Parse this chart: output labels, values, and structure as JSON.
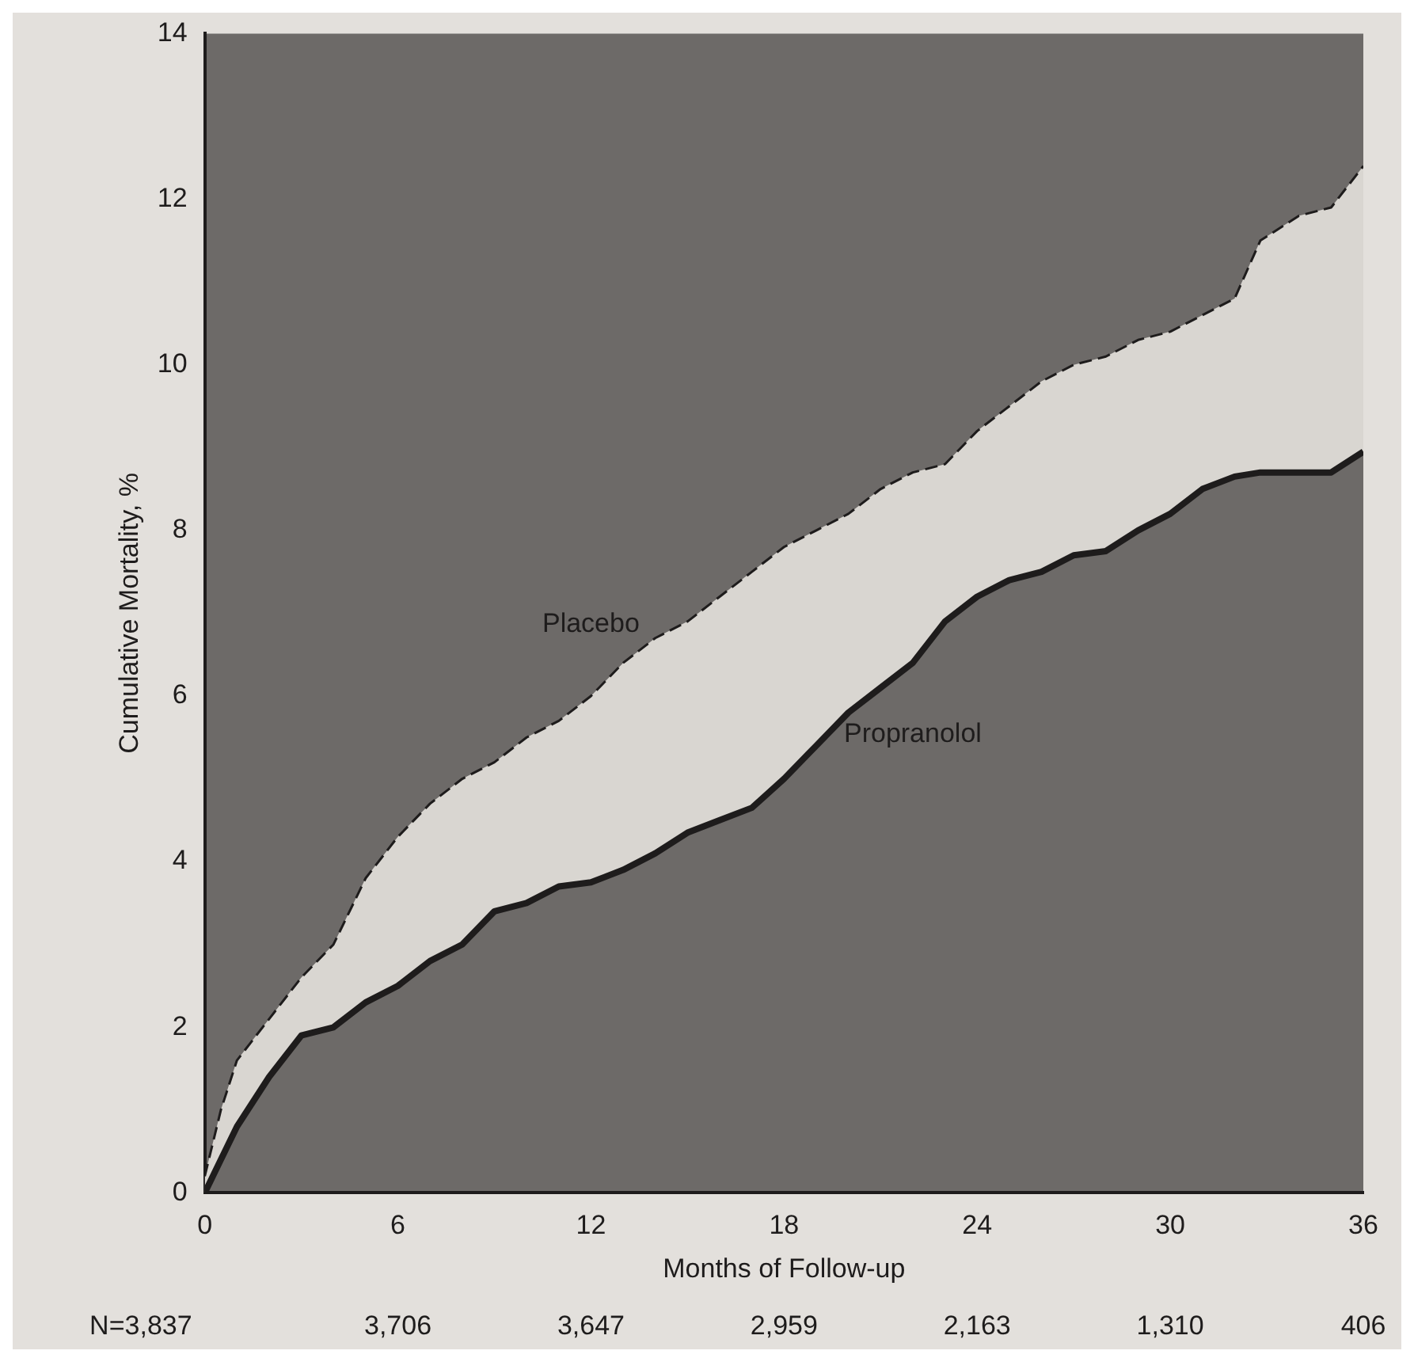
{
  "chart_data": {
    "type": "line",
    "xlabel": "Months of Follow-up",
    "ylabel": "Cumulative Mortality, %",
    "xlim": [
      0,
      36
    ],
    "xticks": [
      0,
      6,
      12,
      18,
      24,
      30,
      36
    ],
    "ylim": [
      0,
      14
    ],
    "yticks": [
      0,
      2,
      4,
      6,
      8,
      10,
      12,
      14
    ],
    "grid": false,
    "legend": false,
    "marker": "none",
    "annotations": [
      "N=3,837",
      "3,706",
      "3,647",
      "2,959",
      "2,163",
      "1,310",
      "406"
    ],
    "x": [
      0,
      0.5,
      1,
      2,
      3,
      4,
      5,
      6,
      7,
      8,
      9,
      10,
      11,
      12,
      13,
      14,
      15,
      16,
      17,
      18,
      19,
      20,
      21,
      22,
      23,
      24,
      25,
      26,
      27,
      28,
      29,
      30,
      31,
      32,
      32.8,
      34,
      35,
      36
    ],
    "series": [
      {
        "name": "Propranolol",
        "color": "#1e1c1c",
        "line_style": "solid",
        "values": [
          0,
          0.4,
          0.8,
          1.4,
          1.9,
          2.0,
          2.3,
          2.5,
          2.8,
          3.0,
          3.4,
          3.5,
          3.7,
          3.75,
          3.9,
          4.1,
          4.35,
          4.5,
          4.65,
          5.0,
          5.4,
          5.8,
          6.1,
          6.4,
          6.9,
          7.2,
          7.4,
          7.5,
          7.7,
          7.75,
          8.0,
          8.2,
          8.5,
          8.65,
          8.7,
          8.7,
          8.7,
          8.95
        ]
      },
      {
        "name": "Placebo",
        "color": "#1e1c1c",
        "line_style": "dashed",
        "values": [
          0.2,
          1.0,
          1.6,
          2.1,
          2.6,
          3.0,
          3.8,
          4.3,
          4.7,
          5.0,
          5.2,
          5.5,
          5.7,
          6.0,
          6.4,
          6.7,
          6.9,
          7.2,
          7.5,
          7.8,
          8.0,
          8.2,
          8.5,
          8.7,
          8.8,
          9.2,
          9.5,
          9.8,
          10.0,
          10.1,
          10.3,
          10.4,
          10.6,
          10.8,
          11.5,
          11.8,
          11.9,
          12.4
        ],
        "lower": [
          0,
          0.4,
          0.8,
          1.4,
          1.9,
          2.0,
          2.3,
          2.5,
          2.8,
          3.0,
          3.4,
          3.5,
          3.7,
          3.75,
          3.9,
          4.1,
          4.35,
          4.5,
          4.65,
          5.0,
          5.4,
          5.8,
          6.1,
          6.4,
          6.9,
          7.2,
          7.4,
          7.5,
          7.7,
          7.75,
          8.0,
          8.2,
          8.5,
          8.65,
          8.7,
          8.7,
          8.7,
          8.95
        ],
        "upper": [
          0.2,
          1.0,
          1.6,
          2.1,
          2.6,
          3.0,
          3.8,
          4.3,
          4.7,
          5.0,
          5.2,
          5.5,
          5.7,
          6.0,
          6.4,
          6.7,
          6.9,
          7.2,
          7.5,
          7.8,
          8.0,
          8.2,
          8.5,
          8.7,
          8.8,
          9.2,
          9.5,
          9.8,
          10.0,
          10.1,
          10.3,
          10.4,
          10.6,
          10.8,
          11.5,
          11.8,
          11.9,
          12.4
        ]
      }
    ]
  }
}
